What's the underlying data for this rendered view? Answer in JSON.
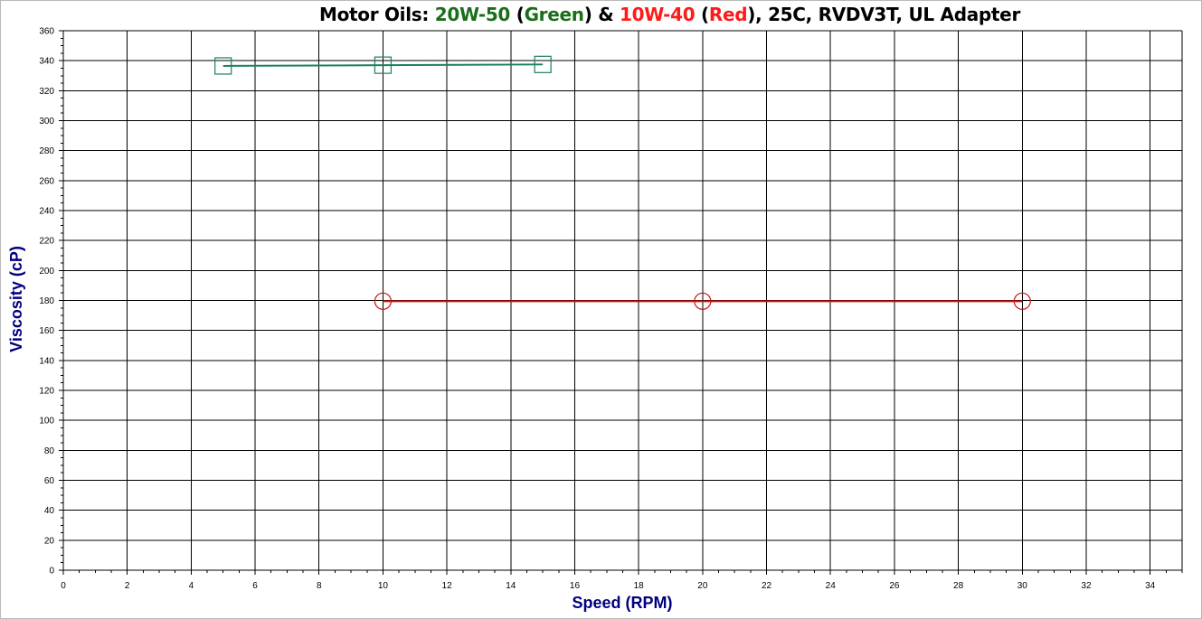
{
  "title_parts": [
    {
      "text": "Motor Oils: ",
      "color": "#000000"
    },
    {
      "text": "20W-50",
      "color": "#1a6e1a"
    },
    {
      "text": " (",
      "color": "#000000"
    },
    {
      "text": "Green",
      "color": "#1a6e1a"
    },
    {
      "text": ") & ",
      "color": "#000000"
    },
    {
      "text": "10W-40",
      "color": "#ff1a1a"
    },
    {
      "text": " (",
      "color": "#000000"
    },
    {
      "text": "Red",
      "color": "#ff1a1a"
    },
    {
      "text": "), 25C,  RVDV3T,  UL Adapter",
      "color": "#000000"
    }
  ],
  "chart_data": {
    "type": "line",
    "title": "Motor Oils: 20W-50 (Green) & 10W-40 (Red), 25C,  RVDV3T,  UL Adapter",
    "xlabel": "Speed (RPM)",
    "ylabel": "Viscosity (cP)",
    "axis_title_color": "#00007f",
    "xlim": [
      0,
      35
    ],
    "ylim": [
      0,
      360
    ],
    "xticks": [
      0,
      2,
      4,
      6,
      8,
      10,
      12,
      14,
      16,
      18,
      20,
      22,
      24,
      26,
      28,
      30,
      32,
      34
    ],
    "yticks": [
      0,
      20,
      40,
      60,
      80,
      100,
      120,
      140,
      160,
      180,
      200,
      220,
      240,
      260,
      280,
      300,
      320,
      340,
      360
    ],
    "xtick_labels": [
      "0",
      "2",
      "4",
      "6",
      "8",
      "10",
      "12",
      "14",
      "16",
      "18",
      "20",
      "22",
      "24",
      "26",
      "28",
      "30",
      "32",
      "34"
    ],
    "ytick_labels": [
      "0",
      "20",
      "40",
      "60",
      "80",
      "100",
      "120",
      "140",
      "160",
      "180",
      "200",
      "220",
      "240",
      "260",
      "280",
      "300",
      "320",
      "340",
      "360"
    ],
    "grid": true,
    "series": [
      {
        "marker": "square",
        "color": "#1a8060",
        "x": [
          5,
          10,
          15
        ],
        "y": [
          336.5,
          337,
          337.5
        ]
      },
      {
        "marker": "circle",
        "color": "#cc1111",
        "x": [
          10,
          20,
          30
        ],
        "y": [
          179.5,
          179.5,
          179.5
        ]
      }
    ]
  }
}
